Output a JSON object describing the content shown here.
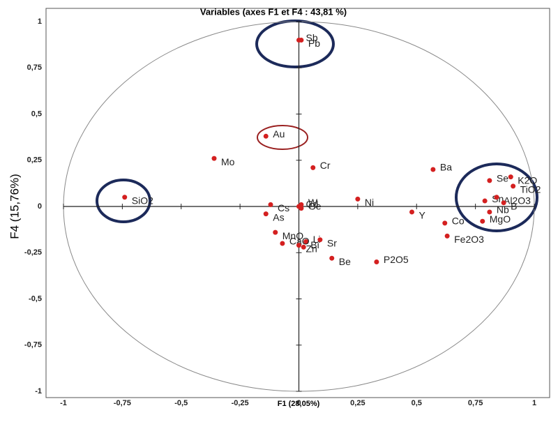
{
  "chart_data": {
    "type": "scatter",
    "title": "Variables (axes F1 et F4 : 43,81 %)",
    "x_label": "F1 (28,05%)",
    "y_label": "F4 (15,76%)",
    "xlim": [
      -1,
      1
    ],
    "ylim": [
      -1,
      1
    ],
    "xticks": [
      -1,
      {
        "value": -0.75,
        "label": "-0,75"
      },
      {
        "value": -0.5,
        "label": "-0,5"
      },
      {
        "value": -0.25,
        "label": "-0,25"
      },
      0,
      {
        "value": 0.25,
        "label": "0,25"
      },
      {
        "value": 0.5,
        "label": "0,5"
      },
      {
        "value": 0.75,
        "label": "0,75"
      },
      1
    ],
    "yticks": [
      -1,
      {
        "value": -0.75,
        "label": "-0,75"
      },
      {
        "value": -0.5,
        "label": "-0,5"
      },
      {
        "value": -0.25,
        "label": "-0,25"
      },
      0,
      {
        "value": 0.25,
        "label": "0,25"
      },
      {
        "value": 0.5,
        "label": "0,5"
      },
      {
        "value": 0.75,
        "label": "0,75"
      },
      1
    ],
    "color": "#d42020",
    "points": [
      {
        "label": "Sb",
        "x": 0.0,
        "y": 0.9
      },
      {
        "label": "Pb",
        "x": 0.01,
        "y": 0.9
      },
      {
        "label": "Au",
        "x": -0.14,
        "y": 0.38
      },
      {
        "label": "Mo",
        "x": -0.36,
        "y": 0.26
      },
      {
        "label": "Cr",
        "x": 0.06,
        "y": 0.21
      },
      {
        "label": "SiO2",
        "x": -0.74,
        "y": 0.05
      },
      {
        "label": "Ba",
        "x": 0.57,
        "y": 0.2
      },
      {
        "label": "K2O",
        "x": 0.9,
        "y": 0.16
      },
      {
        "label": "Se",
        "x": 0.81,
        "y": 0.14
      },
      {
        "label": "TiO2",
        "x": 0.91,
        "y": 0.11
      },
      {
        "label": "Sn",
        "x": 0.79,
        "y": 0.03
      },
      {
        "label": "Al2O3",
        "x": 0.84,
        "y": 0.05
      },
      {
        "label": "Nb",
        "x": 0.81,
        "y": -0.03
      },
      {
        "label": "B",
        "x": 0.87,
        "y": 0.02
      },
      {
        "label": "MgO",
        "x": 0.78,
        "y": -0.08
      },
      {
        "label": "Ni",
        "x": 0.25,
        "y": 0.04
      },
      {
        "label": "W",
        "x": 0.01,
        "y": 0.01
      },
      {
        "label": "Y",
        "x": 0.48,
        "y": -0.03
      },
      {
        "label": "Co",
        "x": 0.62,
        "y": -0.09
      },
      {
        "label": "Fe2O3",
        "x": 0.63,
        "y": -0.16
      },
      {
        "label": "P2O5",
        "x": 0.33,
        "y": -0.3
      },
      {
        "label": "Cs",
        "x": -0.12,
        "y": 0.01
      },
      {
        "label": "Cd",
        "x": 0.0,
        "y": 0.0
      },
      {
        "label": "As",
        "x": -0.14,
        "y": -0.04
      },
      {
        "label": "Ge",
        "x": 0.01,
        "y": -0.01
      },
      {
        "label": "MnO",
        "x": -0.1,
        "y": -0.14
      },
      {
        "label": "Li",
        "x": 0.03,
        "y": -0.19
      },
      {
        "label": "Sr",
        "x": 0.09,
        "y": -0.18
      },
      {
        "label": "CaO",
        "x": -0.07,
        "y": -0.2
      },
      {
        "label": "Zn",
        "x": 0.0,
        "y": -0.21
      },
      {
        "label": "Bi",
        "x": 0.02,
        "y": -0.22
      },
      {
        "label": "Be",
        "x": 0.14,
        "y": -0.28
      }
    ]
  }
}
